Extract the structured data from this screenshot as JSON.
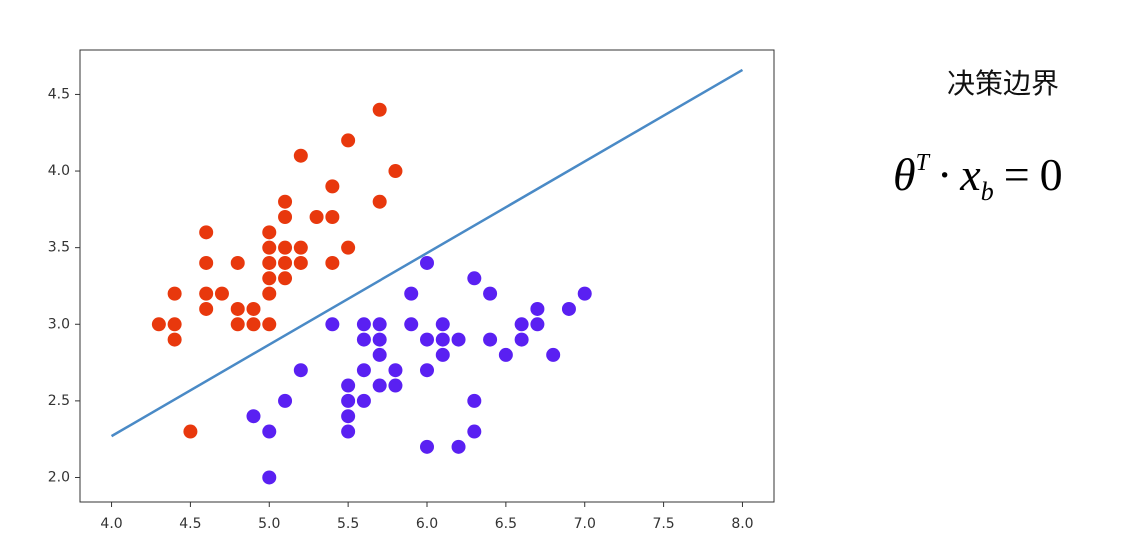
{
  "chart_data": {
    "type": "scatter",
    "xlim": [
      3.8,
      8.2
    ],
    "ylim": [
      1.84,
      4.79
    ],
    "xticks": [
      {
        "value": 4.0,
        "label": "4.0"
      },
      4.5,
      {
        "value": 5.0,
        "label": "5.0"
      },
      5.5,
      {
        "value": 6.0,
        "label": "6.0"
      },
      6.5,
      {
        "value": 7.0,
        "label": "7.0"
      },
      7.5,
      {
        "value": 8.0,
        "label": "8.0"
      }
    ],
    "yticks": [
      {
        "value": 2.0,
        "label": "2.0"
      },
      2.5,
      {
        "value": 3.0,
        "label": "3.0"
      },
      3.5,
      {
        "value": 4.0,
        "label": "4.0"
      },
      4.5
    ],
    "grid": false,
    "series": [
      {
        "color": "#e8380d",
        "x": [
          4.3,
          4.4,
          4.4,
          4.4,
          4.5,
          4.6,
          4.6,
          4.6,
          4.6,
          4.7,
          4.8,
          4.8,
          4.8,
          4.9,
          4.9,
          5.0,
          5.0,
          5.0,
          5.0,
          5.0,
          5.0,
          5.1,
          5.1,
          5.1,
          5.1,
          5.1,
          5.2,
          5.2,
          5.2,
          5.3,
          5.4,
          5.4,
          5.4,
          5.5,
          5.5,
          5.7,
          5.7,
          5.8
        ],
        "values": [
          3.0,
          3.0,
          2.9,
          3.2,
          2.3,
          3.6,
          3.4,
          3.2,
          3.1,
          3.2,
          3.4,
          3.1,
          3.0,
          3.1,
          3.0,
          3.6,
          3.5,
          3.4,
          3.3,
          3.2,
          3.0,
          3.8,
          3.7,
          3.5,
          3.4,
          3.3,
          4.1,
          3.5,
          3.4,
          3.7,
          3.9,
          3.7,
          3.4,
          4.2,
          3.5,
          4.4,
          3.8,
          4.0
        ]
      },
      {
        "color": "#5a20f2",
        "x": [
          4.9,
          5.0,
          5.0,
          5.1,
          5.2,
          5.4,
          5.5,
          5.5,
          5.5,
          5.5,
          5.6,
          5.6,
          5.6,
          5.6,
          5.7,
          5.7,
          5.7,
          5.7,
          5.8,
          5.8,
          5.9,
          5.9,
          6.0,
          6.0,
          6.0,
          6.0,
          6.1,
          6.1,
          6.1,
          6.2,
          6.2,
          6.3,
          6.3,
          6.3,
          6.4,
          6.4,
          6.5,
          6.6,
          6.6,
          6.7,
          6.7,
          6.8,
          6.9,
          7.0
        ],
        "values": [
          2.4,
          2.3,
          2.0,
          2.5,
          2.7,
          3.0,
          2.6,
          2.5,
          2.4,
          2.3,
          3.0,
          2.9,
          2.7,
          2.5,
          3.0,
          2.9,
          2.8,
          2.6,
          2.7,
          2.6,
          3.2,
          3.0,
          3.4,
          2.9,
          2.7,
          2.2,
          3.0,
          2.9,
          2.8,
          2.9,
          2.2,
          3.3,
          2.5,
          2.3,
          3.2,
          2.9,
          2.8,
          3.0,
          2.9,
          3.1,
          3.0,
          2.8,
          3.1,
          3.2
        ]
      }
    ],
    "line": {
      "color": "#4a8ac6",
      "x": [
        4.0,
        8.0
      ],
      "values": [
        2.27,
        4.66
      ]
    },
    "annotation": "决策边界",
    "formula": [
      "θ",
      "T",
      "·",
      "x",
      "b",
      "=",
      "0"
    ]
  }
}
